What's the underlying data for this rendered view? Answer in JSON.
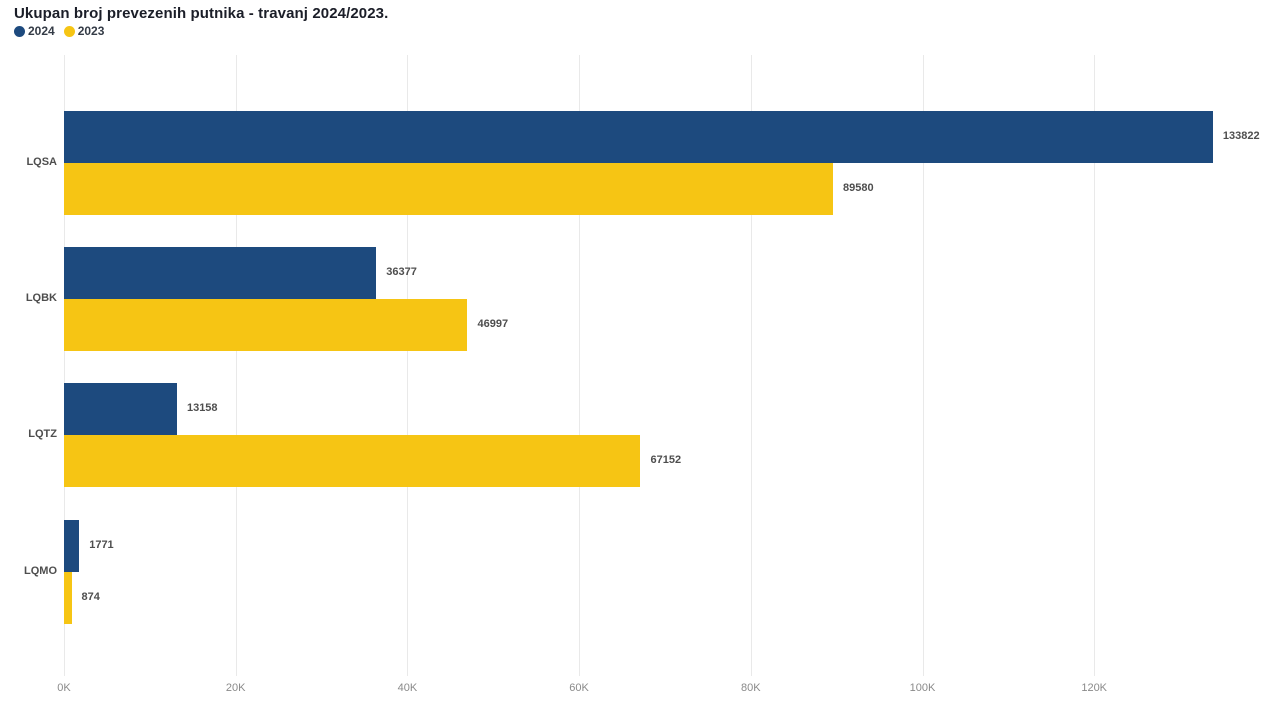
{
  "chart_data": {
    "type": "bar",
    "orientation": "horizontal",
    "title": "Ukupan broj prevezenih putnika - travanj 2024/2023.",
    "categories": [
      "LQSA",
      "LQBK",
      "LQTZ",
      "LQMO"
    ],
    "series": [
      {
        "name": "2024",
        "color": "#1D4A7E",
        "values": [
          133822,
          36377,
          13158,
          1771
        ]
      },
      {
        "name": "2023",
        "color": "#F6C514",
        "values": [
          89580,
          46997,
          67152,
          874
        ]
      }
    ],
    "data_labels": true,
    "xlabel": "",
    "ylabel": "",
    "x_ticks": [
      "0K",
      "20K",
      "40K",
      "60K",
      "80K",
      "100K",
      "120K"
    ],
    "x_tick_values": [
      0,
      20000,
      40000,
      60000,
      80000,
      100000,
      120000
    ],
    "xlim": [
      0,
      140000
    ],
    "grid": "vertical",
    "legend_position": "top-left",
    "colors": {
      "background": "#ffffff",
      "gridline": "#e9e9e9",
      "title": "#1b1e28",
      "data_label": "#4e4e4e",
      "category_label": "#4e4e4e",
      "tick_label": "#8a8a8a",
      "legend_label": "#343b46"
    }
  }
}
